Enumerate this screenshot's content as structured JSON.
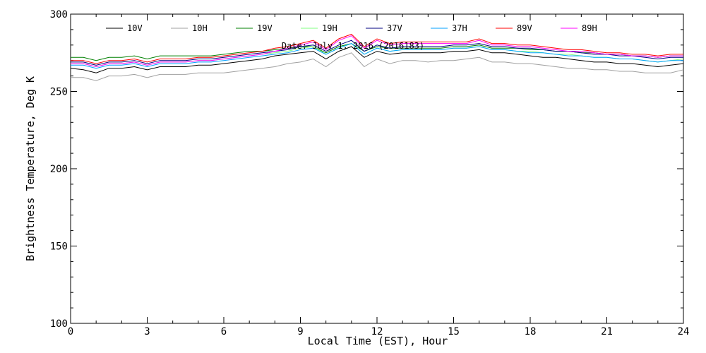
{
  "chart_data": {
    "type": "line",
    "title": "Date: July 1, 2016 (2016183)",
    "xlabel": "Local Time (EST), Hour",
    "ylabel": "Brightness Temperature, Deg K",
    "xlim": [
      0,
      24
    ],
    "ylim": [
      100,
      300
    ],
    "xticks": [
      0,
      3,
      6,
      9,
      12,
      15,
      18,
      21,
      24
    ],
    "yticks": [
      100,
      150,
      200,
      250,
      300
    ],
    "grid": false,
    "legend_position": "top",
    "x": [
      0,
      0.5,
      1,
      1.5,
      2,
      2.5,
      3,
      3.5,
      4,
      4.5,
      5,
      5.5,
      6,
      6.5,
      7,
      7.5,
      8,
      8.5,
      9,
      9.5,
      10,
      10.5,
      11,
      11.5,
      12,
      12.5,
      13,
      13.5,
      14,
      14.5,
      15,
      15.5,
      16,
      16.5,
      17,
      17.5,
      18,
      18.5,
      19,
      19.5,
      20,
      20.5,
      21,
      21.5,
      22,
      22.5,
      23,
      23.5,
      24
    ],
    "series": [
      {
        "name": "10V",
        "color": "#000000",
        "values": [
          265,
          264,
          262,
          265,
          265,
          266,
          264,
          266,
          266,
          266,
          267,
          267,
          268,
          269,
          270,
          271,
          273,
          274,
          275,
          276,
          271,
          276,
          279,
          272,
          276,
          274,
          275,
          275,
          275,
          275,
          276,
          276,
          277,
          275,
          275,
          274,
          273,
          272,
          272,
          271,
          270,
          269,
          269,
          268,
          268,
          267,
          266,
          267,
          268
        ]
      },
      {
        "name": "10H",
        "color": "#a0a0a0",
        "values": [
          259,
          259,
          257,
          260,
          260,
          261,
          259,
          261,
          261,
          261,
          262,
          262,
          262,
          263,
          264,
          265,
          266,
          268,
          269,
          271,
          266,
          272,
          275,
          266,
          271,
          268,
          270,
          270,
          269,
          270,
          270,
          271,
          272,
          269,
          269,
          268,
          268,
          267,
          266,
          265,
          265,
          264,
          264,
          263,
          263,
          262,
          262,
          262,
          264
        ]
      },
      {
        "name": "19V",
        "color": "#008000",
        "values": [
          272,
          272,
          270,
          272,
          272,
          273,
          271,
          273,
          273,
          273,
          273,
          273,
          274,
          275,
          276,
          276,
          277,
          278,
          279,
          279,
          275,
          279,
          281,
          276,
          279,
          278,
          278,
          278,
          278,
          278,
          279,
          279,
          280,
          278,
          278,
          278,
          277,
          277,
          276,
          276,
          275,
          275,
          274,
          274,
          273,
          273,
          272,
          273,
          273
        ]
      },
      {
        "name": "19H",
        "color": "#80ff80",
        "values": [
          268,
          268,
          266,
          268,
          268,
          269,
          267,
          269,
          269,
          269,
          270,
          270,
          271,
          272,
          273,
          274,
          275,
          276,
          278,
          279,
          274,
          278,
          281,
          274,
          278,
          276,
          277,
          277,
          277,
          277,
          278,
          278,
          279,
          277,
          277,
          276,
          276,
          275,
          274,
          274,
          273,
          272,
          272,
          271,
          271,
          270,
          269,
          270,
          271
        ]
      },
      {
        "name": "37V",
        "color": "#000080",
        "values": [
          269,
          269,
          267,
          269,
          269,
          270,
          268,
          270,
          270,
          270,
          271,
          271,
          272,
          273,
          274,
          275,
          276,
          277,
          279,
          280,
          276,
          280,
          283,
          276,
          280,
          278,
          279,
          279,
          279,
          279,
          280,
          280,
          281,
          279,
          279,
          278,
          278,
          277,
          276,
          276,
          275,
          274,
          274,
          273,
          273,
          272,
          271,
          272,
          272
        ]
      },
      {
        "name": "37H",
        "color": "#00a0ff",
        "values": [
          267,
          267,
          265,
          267,
          267,
          268,
          266,
          268,
          268,
          268,
          269,
          269,
          270,
          271,
          272,
          273,
          274,
          275,
          277,
          278,
          274,
          278,
          281,
          274,
          278,
          276,
          277,
          277,
          277,
          277,
          278,
          278,
          279,
          277,
          277,
          276,
          275,
          275,
          274,
          273,
          273,
          272,
          272,
          271,
          271,
          270,
          269,
          270,
          270
        ]
      },
      {
        "name": "89V",
        "color": "#ff0000",
        "values": [
          270,
          270,
          268,
          270,
          270,
          271,
          269,
          271,
          271,
          271,
          272,
          272,
          273,
          274,
          275,
          276,
          278,
          279,
          281,
          283,
          278,
          284,
          287,
          279,
          284,
          281,
          282,
          282,
          282,
          282,
          282,
          282,
          284,
          281,
          281,
          280,
          280,
          279,
          278,
          277,
          277,
          276,
          275,
          275,
          274,
          274,
          273,
          274,
          274
        ]
      },
      {
        "name": "89H",
        "color": "#ff00ff",
        "values": [
          268,
          268,
          266,
          268,
          268,
          269,
          267,
          269,
          269,
          269,
          270,
          270,
          271,
          272,
          273,
          274,
          276,
          278,
          280,
          282,
          277,
          283,
          286,
          278,
          283,
          280,
          281,
          281,
          281,
          281,
          281,
          281,
          283,
          280,
          280,
          279,
          279,
          278,
          277,
          276,
          276,
          275,
          274,
          274,
          273,
          273,
          272,
          273,
          273
        ]
      }
    ]
  }
}
